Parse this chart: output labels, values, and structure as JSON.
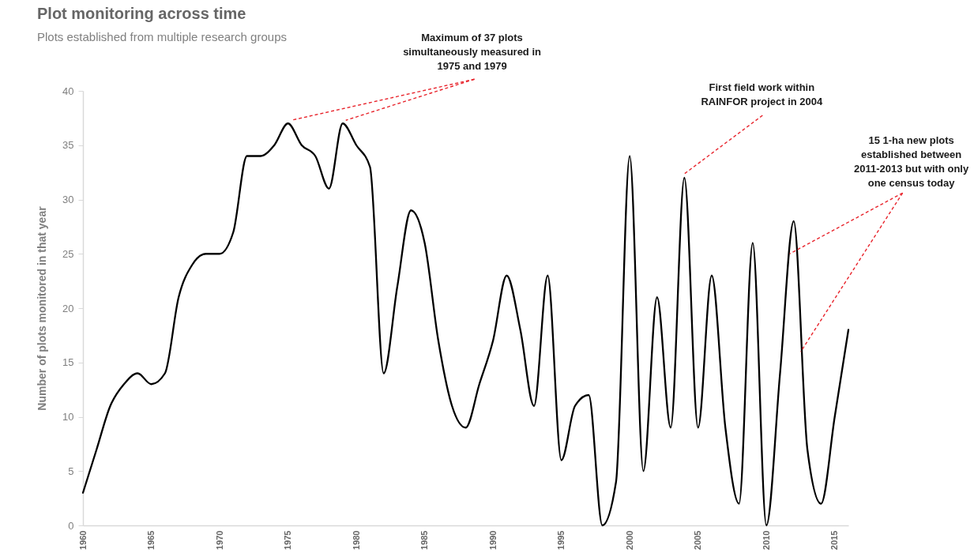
{
  "chart_data": {
    "type": "line",
    "title": "Plot monitoring across time",
    "subtitle": "Plots established from multiple research groups",
    "ylabel": "Number of plots monitored in that year",
    "x": [
      1960,
      1961,
      1962,
      1963,
      1964,
      1965,
      1966,
      1967,
      1968,
      1969,
      1970,
      1971,
      1972,
      1973,
      1974,
      1975,
      1976,
      1977,
      1978,
      1979,
      1980,
      1981,
      1982,
      1983,
      1984,
      1985,
      1986,
      1987,
      1988,
      1989,
      1990,
      1991,
      1992,
      1993,
      1994,
      1995,
      1996,
      1997,
      1998,
      1999,
      2000,
      2001,
      2002,
      2003,
      2004,
      2005,
      2006,
      2007,
      2008,
      2009,
      2010,
      2011,
      2012,
      2013,
      2014,
      2015,
      2016
    ],
    "series": [
      {
        "color": "#000000",
        "values": [
          3,
          7,
          11,
          13,
          14,
          13,
          14,
          21,
          24,
          25,
          25,
          27,
          34,
          34,
          35,
          37,
          35,
          34,
          31,
          37,
          35,
          33,
          14,
          22,
          29,
          26,
          17,
          11,
          9,
          13,
          17,
          23,
          18,
          11,
          23,
          6,
          11,
          12,
          0,
          4,
          34,
          5,
          21,
          9,
          32,
          9,
          23,
          9,
          2,
          26,
          0,
          14,
          28,
          7,
          2,
          10,
          18
        ]
      }
    ],
    "xlim": [
      1960,
      2016
    ],
    "xticks": [
      1960,
      1965,
      1970,
      1975,
      1980,
      1985,
      1990,
      1995,
      2000,
      2005,
      2010,
      2015
    ],
    "ylim": [
      0,
      40
    ],
    "yticks": [
      0,
      5,
      10,
      15,
      20,
      25,
      30,
      35,
      40
    ],
    "grid": false,
    "marker": "none",
    "line_style": "solid",
    "annotations": [
      {
        "text": "Maximum of 37 plots\nsimultaneously measured in\n1975 and 1979",
        "x": 1975,
        "y": 37
      },
      {
        "text": "First field work within\nRAINFOR project in 2004",
        "x": 2004,
        "y": 32
      },
      {
        "text": "15 1-ha new plots\nestablished  between\n2011-2013 but with only\none census today",
        "x": 2011.7,
        "y": 25
      }
    ]
  }
}
